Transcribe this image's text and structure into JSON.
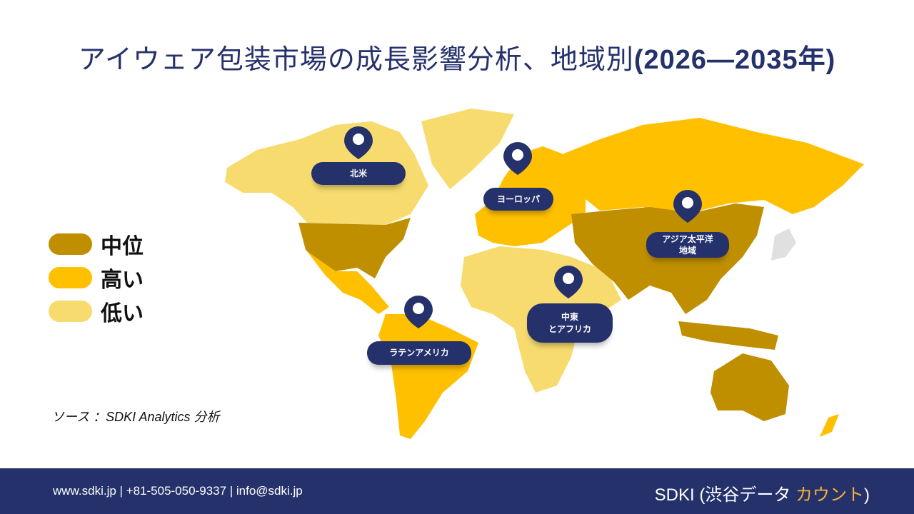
{
  "title": {
    "main": "アイウェア包装市場の成長影響分析、地域別",
    "years": "(2026—2035年)"
  },
  "legend": [
    {
      "label": "中位",
      "color": "#BF8F00"
    },
    {
      "label": "高い",
      "color": "#FFC000"
    },
    {
      "label": "低い",
      "color": "#F7DB6E"
    }
  ],
  "regions": [
    {
      "label": "北米",
      "level": "中位"
    },
    {
      "label": "ヨーロッパ",
      "level": "高い"
    },
    {
      "label": "アジア太平洋地域",
      "level": "中位"
    },
    {
      "label": "中東とアフリカ",
      "level": "低い"
    },
    {
      "label": "ラテンアメリカ",
      "level": "高い"
    }
  ],
  "labels": {
    "na": "北米",
    "eu": "ヨーロッパ",
    "ap1": "アジア太平洋",
    "ap2": "地域",
    "mea1": "中東",
    "mea2": "とアフリカ",
    "la": "ラテンアメリカ"
  },
  "source": "ソース ：SDKI Analytics 分析",
  "footer": {
    "contact": "www.sdki.jp | +81-505-050-9337 | info@sdki.jp",
    "brand_main": "SDKI (渋谷データ ",
    "brand_accent": "カウント",
    "brand_close": ")"
  },
  "colors": {
    "navy": "#25316B",
    "medium": "#BF8F00",
    "high": "#FFC000",
    "low": "#F7DB6E"
  }
}
